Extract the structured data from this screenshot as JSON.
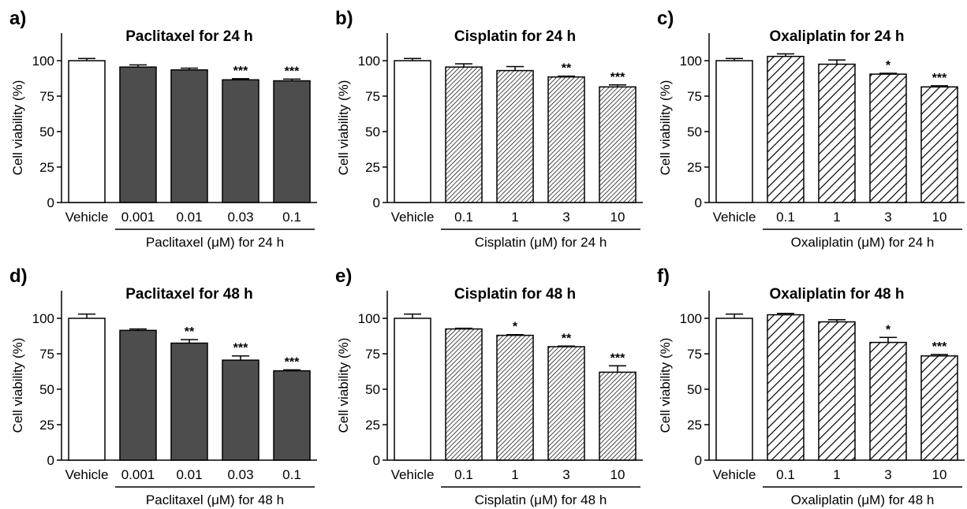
{
  "colors": {
    "paclitaxel_fill": "#4d4d4d",
    "vehicle_fill": "#ffffff",
    "stroke": "#000000"
  },
  "chart_data": [
    {
      "panel_label": "a)",
      "title": "Paclitaxel for 24 h",
      "type": "bar",
      "ylabel": "Cell viability (%)",
      "ylim": [
        0,
        120
      ],
      "yticks": [
        0,
        25,
        50,
        75,
        100
      ],
      "categories": [
        "Vehicle",
        "0.001",
        "0.01",
        "0.03",
        "0.1"
      ],
      "values": [
        100,
        95.5,
        93.5,
        86.5,
        85.8
      ],
      "errors": [
        1.5,
        1.5,
        1.2,
        0.8,
        1.2
      ],
      "significance": [
        "",
        "",
        "",
        "***",
        "***"
      ],
      "fill_pattern": "solid",
      "xlabel": "Paclitaxel (μM) for 24 h"
    },
    {
      "panel_label": "b)",
      "title": "Cisplatin for 24 h",
      "type": "bar",
      "ylabel": "Cell viability (%)",
      "ylim": [
        0,
        120
      ],
      "yticks": [
        0,
        25,
        50,
        75,
        100
      ],
      "categories": [
        "Vehicle",
        "0.1",
        "1",
        "3",
        "10"
      ],
      "values": [
        100,
        95.5,
        93,
        88.5,
        81.5
      ],
      "errors": [
        1.5,
        2.3,
        2.8,
        0.6,
        1.4
      ],
      "significance": [
        "",
        "",
        "",
        "**",
        "***"
      ],
      "fill_pattern": "dense-hatch",
      "xlabel": "Cisplatin (μM) for 24 h"
    },
    {
      "panel_label": "c)",
      "title": "Oxaliplatin for 24 h",
      "type": "bar",
      "ylabel": "Cell viability (%)",
      "ylim": [
        0,
        120
      ],
      "yticks": [
        0,
        25,
        50,
        75,
        100
      ],
      "categories": [
        "Vehicle",
        "0.1",
        "1",
        "3",
        "10"
      ],
      "values": [
        100,
        103,
        97.5,
        90.5,
        81.5
      ],
      "errors": [
        1.5,
        1.8,
        3.0,
        0.6,
        0.8
      ],
      "significance": [
        "",
        "",
        "",
        "*",
        "***"
      ],
      "fill_pattern": "wide-hatch",
      "xlabel": "Oxaliplatin (μM) for 24 h"
    },
    {
      "panel_label": "d)",
      "title": "Paclitaxel for 48 h",
      "type": "bar",
      "ylabel": "Cell viability (%)",
      "ylim": [
        0,
        120
      ],
      "yticks": [
        0,
        25,
        50,
        75,
        100
      ],
      "categories": [
        "Vehicle",
        "0.001",
        "0.01",
        "0.03",
        "0.1"
      ],
      "values": [
        100,
        91.5,
        82.5,
        70.5,
        63
      ],
      "errors": [
        3.0,
        1.0,
        2.5,
        3.0,
        0.7
      ],
      "significance": [
        "",
        "",
        "**",
        "***",
        "***"
      ],
      "fill_pattern": "solid",
      "xlabel": "Paclitaxel (μM) for 48 h"
    },
    {
      "panel_label": "e)",
      "title": "Cisplatin for 48 h",
      "type": "bar",
      "ylabel": "Cell viability (%)",
      "ylim": [
        0,
        120
      ],
      "yticks": [
        0,
        25,
        50,
        75,
        100
      ],
      "categories": [
        "Vehicle",
        "0.1",
        "1",
        "3",
        "10"
      ],
      "values": [
        100,
        92.5,
        88,
        80,
        62
      ],
      "errors": [
        3.0,
        0.5,
        0.5,
        0.4,
        4.5
      ],
      "significance": [
        "",
        "",
        "*",
        "**",
        "***"
      ],
      "fill_pattern": "dense-hatch",
      "xlabel": "Cisplatin (μM) for 48 h"
    },
    {
      "panel_label": "f)",
      "title": "Oxaliplatin for 48 h",
      "type": "bar",
      "ylabel": "Cell viability (%)",
      "ylim": [
        0,
        120
      ],
      "yticks": [
        0,
        25,
        50,
        75,
        100
      ],
      "categories": [
        "Vehicle",
        "0.1",
        "1",
        "3",
        "10"
      ],
      "values": [
        100,
        102.5,
        97.5,
        83,
        73.5
      ],
      "errors": [
        3.0,
        1.0,
        1.5,
        3.5,
        1.0
      ],
      "significance": [
        "",
        "",
        "",
        "*",
        "***"
      ],
      "fill_pattern": "wide-hatch",
      "xlabel": "Oxaliplatin (μM) for 48 h"
    }
  ]
}
